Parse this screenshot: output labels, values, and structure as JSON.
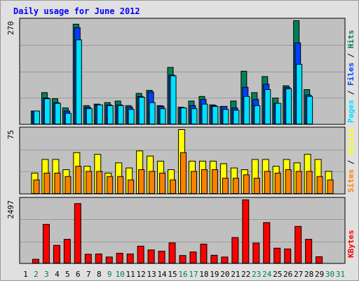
{
  "title": "Daily usage for June 2012",
  "colors": {
    "hits": "#00805C",
    "files": "#0040FF",
    "pages": "#00E0FF",
    "visits": "#FFFF00",
    "sites": "#FF8000",
    "kbytes": "#FF0000",
    "weekday_label": "#000000",
    "weekend_label": "#008040",
    "panel_bg": "#C0C0C0"
  },
  "chart_data": [
    {
      "type": "bar",
      "name": "hits_files_pages",
      "categories": [
        "1",
        "2",
        "3",
        "4",
        "5",
        "6",
        "7",
        "8",
        "9",
        "10",
        "11",
        "12",
        "13",
        "14",
        "15",
        "16",
        "17",
        "18",
        "19",
        "20",
        "21",
        "22",
        "23",
        "24",
        "25",
        "26",
        "27",
        "28",
        "29",
        "30",
        "31"
      ],
      "ymax_label": "270",
      "ymax": 270,
      "right_label": {
        "pages": "Pages",
        "files": "Files",
        "hits": "Hits",
        "sep": " / "
      },
      "series": [
        {
          "name": "Hits",
          "values": [
            0,
            34,
            82,
            66,
            42,
            261,
            48,
            52,
            56,
            60,
            48,
            80,
            88,
            48,
            148,
            44,
            60,
            72,
            50,
            46,
            60,
            138,
            82,
            124,
            68,
            100,
            270,
            90,
            0,
            0,
            0
          ]
        },
        {
          "name": "Files",
          "values": [
            0,
            34,
            68,
            56,
            34,
            252,
            44,
            50,
            50,
            50,
            44,
            72,
            84,
            46,
            128,
            42,
            48,
            64,
            48,
            46,
            42,
            96,
            64,
            104,
            54,
            96,
            212,
            76,
            0,
            0,
            0
          ]
        },
        {
          "name": "Pages",
          "values": [
            0,
            34,
            66,
            54,
            28,
            220,
            40,
            50,
            48,
            48,
            38,
            70,
            56,
            40,
            126,
            42,
            40,
            52,
            46,
            38,
            36,
            72,
            48,
            90,
            54,
            92,
            156,
            72,
            0,
            0,
            0
          ]
        }
      ]
    },
    {
      "type": "bar",
      "name": "visits_sites",
      "categories": [
        "1",
        "2",
        "3",
        "4",
        "5",
        "6",
        "7",
        "8",
        "9",
        "10",
        "11",
        "12",
        "13",
        "14",
        "15",
        "16",
        "17",
        "18",
        "19",
        "20",
        "21",
        "22",
        "23",
        "24",
        "25",
        "26",
        "27",
        "28",
        "29",
        "30",
        "31"
      ],
      "ymax_label": "75",
      "ymax": 75,
      "right_label": {
        "sites": "Sites",
        "visits": "Visits",
        "sep": " / "
      },
      "series": [
        {
          "name": "Visits",
          "values": [
            0,
            24,
            40,
            40,
            28,
            48,
            32,
            46,
            24,
            36,
            30,
            50,
            44,
            38,
            28,
            75,
            38,
            38,
            38,
            35,
            30,
            28,
            40,
            40,
            32,
            40,
            36,
            46,
            40,
            26,
            0
          ]
        },
        {
          "name": "Sites",
          "values": [
            0,
            16,
            24,
            24,
            20,
            32,
            26,
            26,
            20,
            20,
            16,
            28,
            26,
            24,
            16,
            48,
            26,
            28,
            28,
            18,
            18,
            22,
            18,
            26,
            24,
            28,
            26,
            26,
            20,
            16,
            0
          ]
        }
      ]
    },
    {
      "type": "bar",
      "name": "kbytes",
      "categories": [
        "1",
        "2",
        "3",
        "4",
        "5",
        "6",
        "7",
        "8",
        "9",
        "10",
        "11",
        "12",
        "13",
        "14",
        "15",
        "16",
        "17",
        "18",
        "19",
        "20",
        "21",
        "22",
        "23",
        "24",
        "25",
        "26",
        "27",
        "28",
        "29",
        "30",
        "31"
      ],
      "ymax_label": "2497",
      "ymax": 2497,
      "right_label": {
        "kbytes": "KBytes"
      },
      "series": [
        {
          "name": "KBytes",
          "values": [
            0,
            150,
            1530,
            700,
            940,
            2350,
            350,
            360,
            240,
            390,
            360,
            670,
            520,
            470,
            800,
            300,
            440,
            750,
            310,
            240,
            1010,
            2497,
            790,
            1600,
            590,
            560,
            1450,
            940,
            250,
            0,
            0
          ]
        }
      ]
    }
  ],
  "x_labels": [
    "1",
    "2",
    "3",
    "4",
    "5",
    "6",
    "7",
    "8",
    "9",
    "10",
    "11",
    "12",
    "13",
    "14",
    "15",
    "16",
    "17",
    "18",
    "19",
    "20",
    "21",
    "22",
    "23",
    "24",
    "25",
    "26",
    "27",
    "28",
    "29",
    "30",
    "31"
  ],
  "weekend_days": [
    2,
    3,
    9,
    10,
    16,
    17,
    23,
    24,
    30,
    31
  ]
}
